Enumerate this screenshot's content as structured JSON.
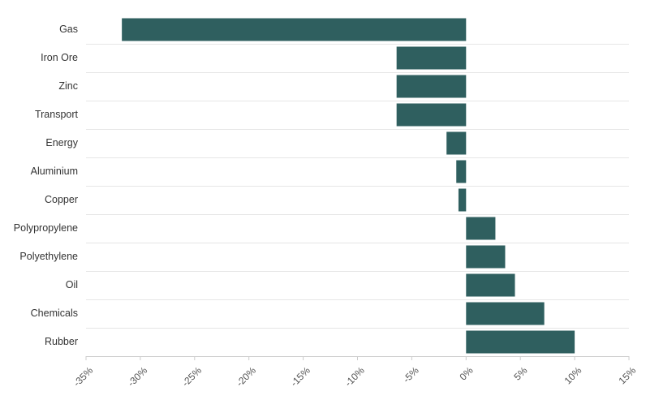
{
  "chart_data": {
    "type": "bar",
    "orientation": "horizontal",
    "title": "",
    "xlabel": "",
    "ylabel": "",
    "categories": [
      "Gas",
      "Iron Ore",
      "Zinc",
      "Transport",
      "Energy",
      "Aluminium",
      "Copper",
      "Polypropylene",
      "Polyethylene",
      "Oil",
      "Chemicals",
      "Rubber"
    ],
    "values": [
      -31.7,
      -6.4,
      -6.4,
      -6.4,
      -1.8,
      -0.9,
      -0.7,
      2.7,
      3.6,
      4.5,
      7.2,
      10.0
    ],
    "xlim": [
      -35,
      15
    ],
    "xticks": [
      -35,
      -30,
      -25,
      -20,
      -15,
      -10,
      -5,
      0,
      5,
      10,
      15
    ],
    "tick_suffix": "%",
    "bar_color": "#2f5f5f",
    "grid": false,
    "legend": "none"
  }
}
